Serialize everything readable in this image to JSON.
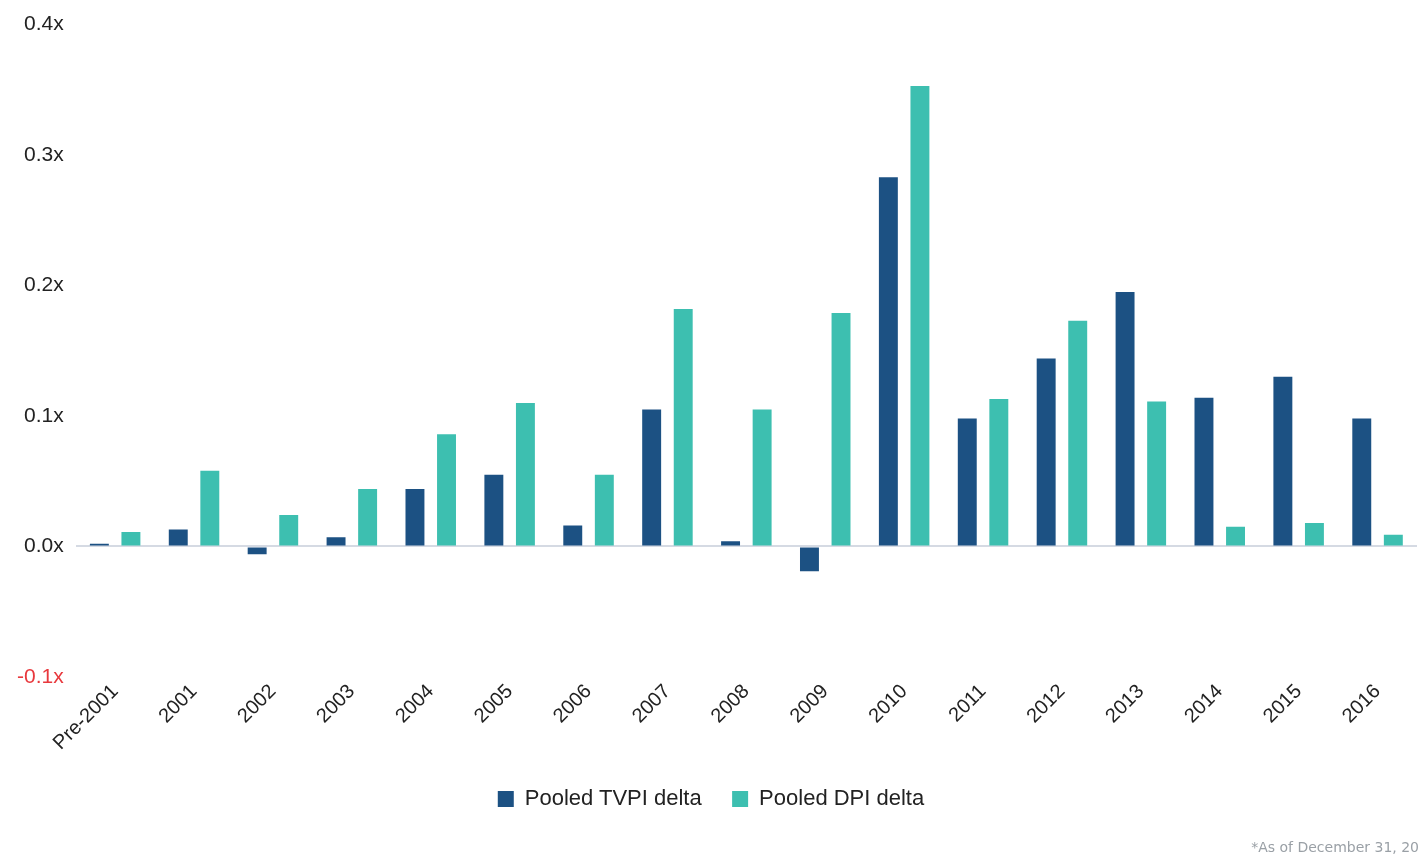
{
  "chart_data": {
    "type": "bar",
    "categories": [
      "Pre-2001",
      "2001",
      "2002",
      "2003",
      "2004",
      "2005",
      "2006",
      "2007",
      "2008",
      "2009",
      "2010",
      "2011",
      "2012",
      "2013",
      "2014",
      "2015",
      "2016"
    ],
    "series": [
      {
        "name": "Pooled TVPI delta",
        "color": "#1c5183",
        "values": [
          0.002,
          0.013,
          -0.006,
          0.007,
          0.044,
          0.055,
          0.016,
          0.105,
          0.004,
          -0.019,
          0.283,
          0.098,
          0.144,
          0.195,
          0.114,
          0.13,
          0.098
        ]
      },
      {
        "name": "Pooled DPI delta",
        "color": "#3dbfb0",
        "values": [
          0.011,
          0.058,
          0.024,
          0.044,
          0.086,
          0.11,
          0.055,
          0.182,
          0.105,
          0.179,
          0.353,
          0.113,
          0.173,
          0.111,
          0.015,
          0.018,
          0.009
        ]
      }
    ],
    "ylim": [
      -0.1,
      0.4
    ],
    "yticks": [
      {
        "value": -0.1,
        "label": "-0.1x"
      },
      {
        "value": 0,
        "label": "0.0x"
      },
      {
        "value": 0.1,
        "label": "0.1x"
      },
      {
        "value": 0.2,
        "label": "0.2x"
      },
      {
        "value": 0.3,
        "label": "0.3x"
      },
      {
        "value": 0.4,
        "label": "0.4x"
      }
    ],
    "legend": "bottom",
    "annotations": [
      "*As of December 31, 20"
    ]
  }
}
